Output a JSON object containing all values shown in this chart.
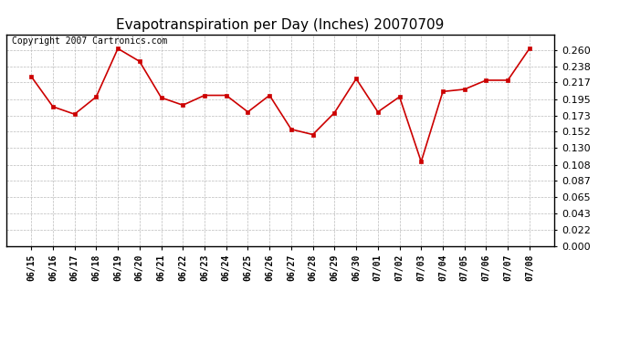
{
  "title": "Evapotranspiration per Day (Inches) 20070709",
  "copyright_text": "Copyright 2007 Cartronics.com",
  "x_labels": [
    "06/15",
    "06/16",
    "06/17",
    "06/18",
    "06/19",
    "06/20",
    "06/21",
    "06/22",
    "06/23",
    "06/24",
    "06/25",
    "06/26",
    "06/27",
    "06/28",
    "06/29",
    "06/30",
    "07/01",
    "07/02",
    "07/03",
    "07/04",
    "07/05",
    "07/06",
    "07/07",
    "07/08"
  ],
  "y_values": [
    0.225,
    0.185,
    0.175,
    0.198,
    0.262,
    0.245,
    0.197,
    0.187,
    0.2,
    0.2,
    0.178,
    0.2,
    0.155,
    0.148,
    0.177,
    0.222,
    0.178,
    0.198,
    0.112,
    0.205,
    0.208,
    0.22,
    0.22,
    0.262
  ],
  "line_color": "#cc0000",
  "marker": "s",
  "marker_size": 3,
  "ylim": [
    0.0,
    0.281
  ],
  "yticks": [
    0.0,
    0.022,
    0.043,
    0.065,
    0.087,
    0.108,
    0.13,
    0.152,
    0.173,
    0.195,
    0.217,
    0.238,
    0.26
  ],
  "bg_color": "#ffffff",
  "plot_bg_color": "#ffffff",
  "grid_color": "#bbbbbb",
  "title_fontsize": 11,
  "copyright_fontsize": 7,
  "tick_fontsize": 7,
  "ytick_fontsize": 8
}
